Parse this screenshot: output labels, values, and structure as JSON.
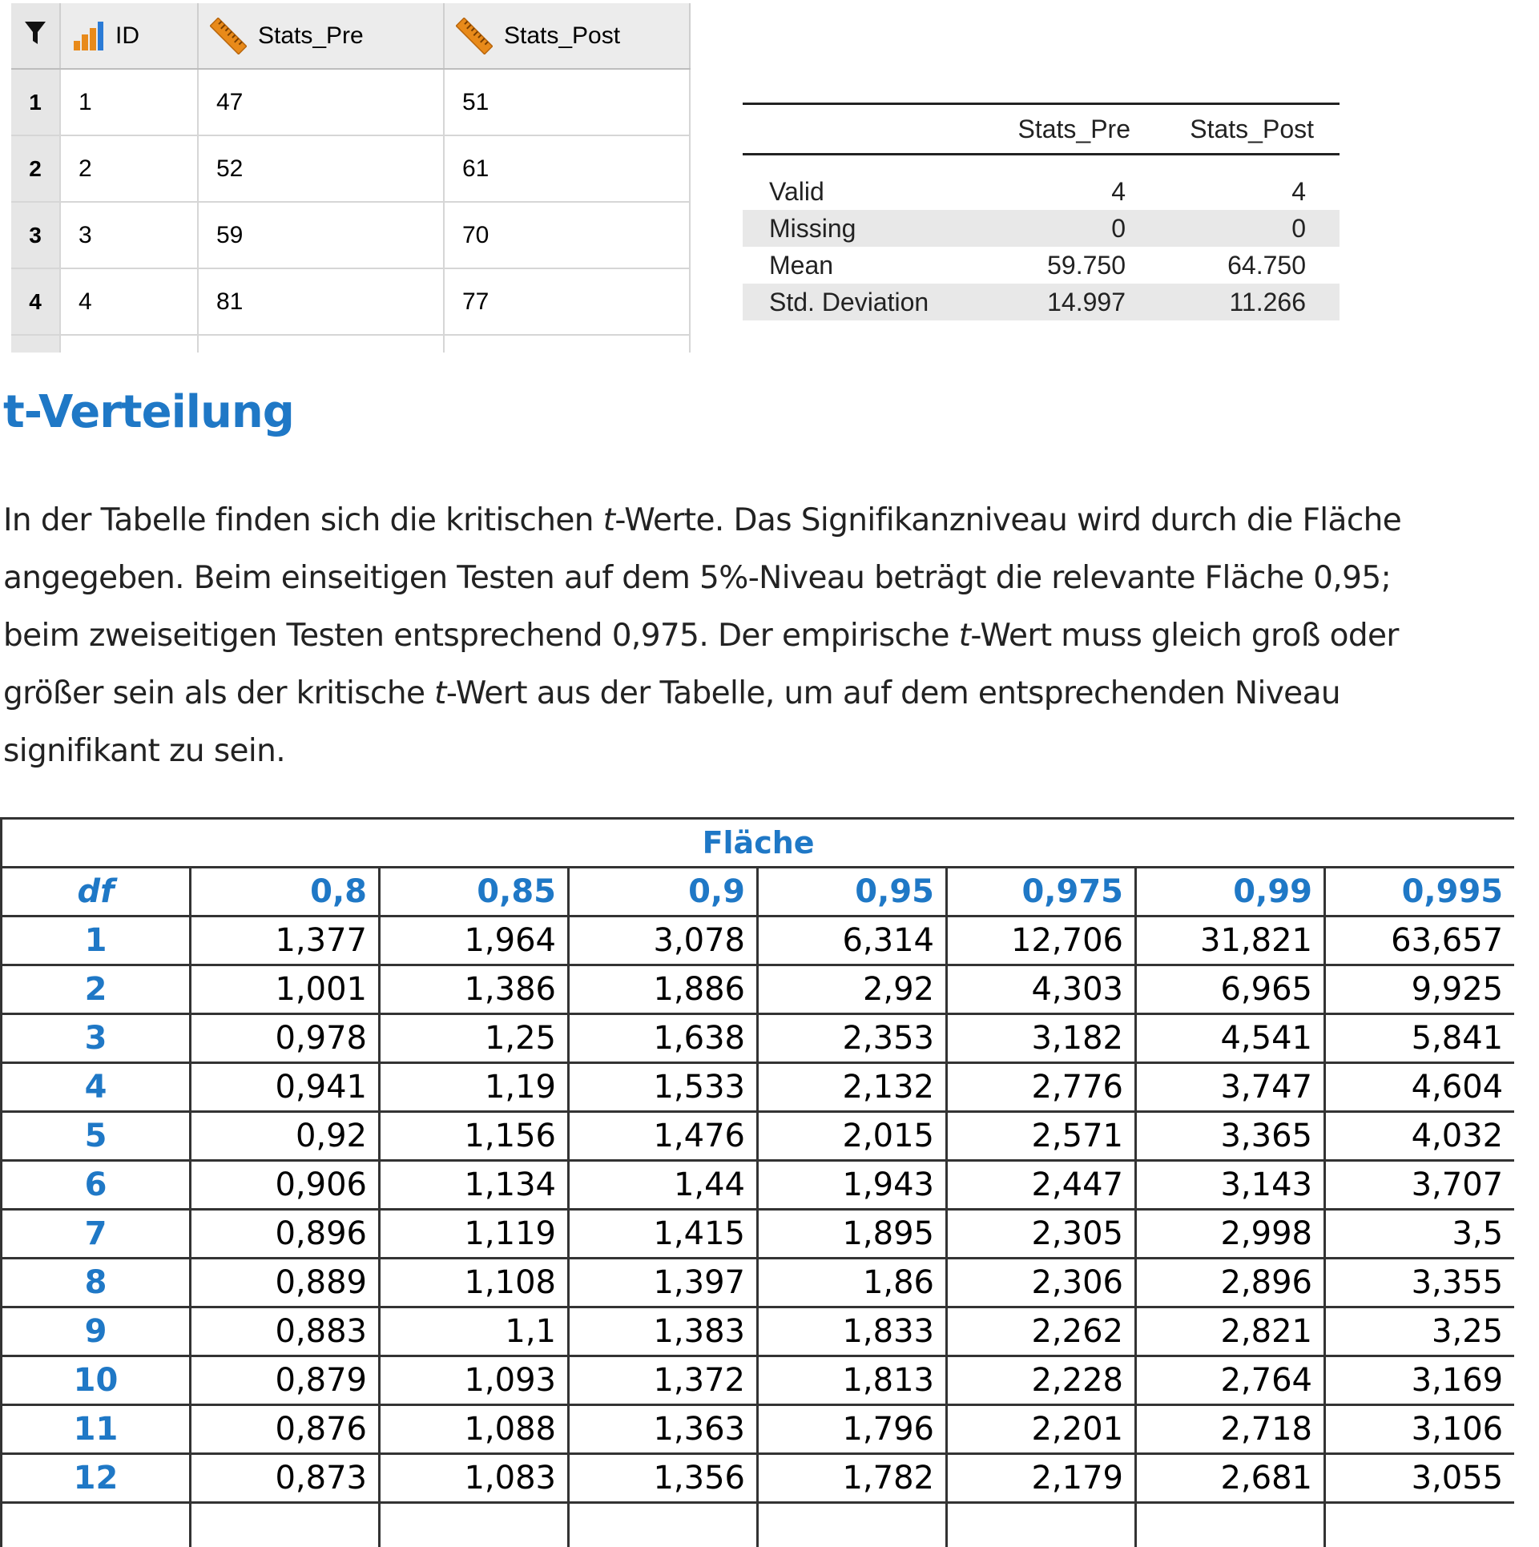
{
  "data_view": {
    "columns": [
      {
        "name": "ID",
        "icon": "nominal-bar-icon"
      },
      {
        "name": "Stats_Pre",
        "icon": "scale-ruler-icon"
      },
      {
        "name": "Stats_Post",
        "icon": "scale-ruler-icon"
      }
    ],
    "rows": [
      {
        "row": "1",
        "id": "1",
        "pre": "47",
        "post": "51"
      },
      {
        "row": "2",
        "id": "2",
        "pre": "52",
        "post": "61"
      },
      {
        "row": "3",
        "id": "3",
        "pre": "59",
        "post": "70"
      },
      {
        "row": "4",
        "id": "4",
        "pre": "81",
        "post": "77"
      }
    ]
  },
  "descriptives": {
    "headers": [
      "Stats_Pre",
      "Stats_Post"
    ],
    "rows": [
      {
        "label": "Valid",
        "pre": "4",
        "post": "4"
      },
      {
        "label": "Missing",
        "pre": "0",
        "post": "0"
      },
      {
        "label": "Mean",
        "pre": "59.750",
        "post": "64.750"
      },
      {
        "label": "Std. Deviation",
        "pre": "14.997",
        "post": "11.266"
      }
    ]
  },
  "article": {
    "heading": "t-Verteilung",
    "line1_a": "In der Tabelle finden sich die kritischen ",
    "line1_t": "t",
    "line1_b": "-Werte. Das Signifikanzniveau wird durch die Fläche",
    "line2": "angegeben. Beim einseitigen Testen auf dem 5%-Niveau beträgt die relevante Fläche 0,95;",
    "line3_a": "beim zweiseitigen Testen entsprechend 0,975. Der empirische ",
    "line3_t": "t",
    "line3_b": "-Wert muss gleich groß oder",
    "line4_a": "größer sein als der kritische ",
    "line4_t": "t",
    "line4_b": "-Wert aus der Tabelle, um auf dem entsprechenden Niveau",
    "line5": "signifikant zu sein."
  },
  "t_table": {
    "title": "Fläche",
    "df_label": "df",
    "areas": [
      "0,8",
      "0,85",
      "0,9",
      "0,95",
      "0,975",
      "0,99",
      "0,995"
    ],
    "rows": [
      {
        "df": "1",
        "v": [
          "1,377",
          "1,964",
          "3,078",
          "6,314",
          "12,706",
          "31,821",
          "63,657"
        ]
      },
      {
        "df": "2",
        "v": [
          "1,001",
          "1,386",
          "1,886",
          "2,92",
          "4,303",
          "6,965",
          "9,925"
        ]
      },
      {
        "df": "3",
        "v": [
          "0,978",
          "1,25",
          "1,638",
          "2,353",
          "3,182",
          "4,541",
          "5,841"
        ]
      },
      {
        "df": "4",
        "v": [
          "0,941",
          "1,19",
          "1,533",
          "2,132",
          "2,776",
          "3,747",
          "4,604"
        ]
      },
      {
        "df": "5",
        "v": [
          "0,92",
          "1,156",
          "1,476",
          "2,015",
          "2,571",
          "3,365",
          "4,032"
        ]
      },
      {
        "df": "6",
        "v": [
          "0,906",
          "1,134",
          "1,44",
          "1,943",
          "2,447",
          "3,143",
          "3,707"
        ]
      },
      {
        "df": "7",
        "v": [
          "0,896",
          "1,119",
          "1,415",
          "1,895",
          "2,305",
          "2,998",
          "3,5"
        ]
      },
      {
        "df": "8",
        "v": [
          "0,889",
          "1,108",
          "1,397",
          "1,86",
          "2,306",
          "2,896",
          "3,355"
        ]
      },
      {
        "df": "9",
        "v": [
          "0,883",
          "1,1",
          "1,383",
          "1,833",
          "2,262",
          "2,821",
          "3,25"
        ]
      },
      {
        "df": "10",
        "v": [
          "0,879",
          "1,093",
          "1,372",
          "1,813",
          "2,228",
          "2,764",
          "3,169"
        ]
      },
      {
        "df": "11",
        "v": [
          "0,876",
          "1,088",
          "1,363",
          "1,796",
          "2,201",
          "2,718",
          "3,106"
        ]
      },
      {
        "df": "12",
        "v": [
          "0,873",
          "1,083",
          "1,356",
          "1,782",
          "2,179",
          "2,681",
          "3,055"
        ]
      }
    ]
  },
  "colors": {
    "accent_blue": "#1f78c6",
    "ruler_orange": "#e88a1a",
    "bar_blue": "#2b7bd6"
  }
}
